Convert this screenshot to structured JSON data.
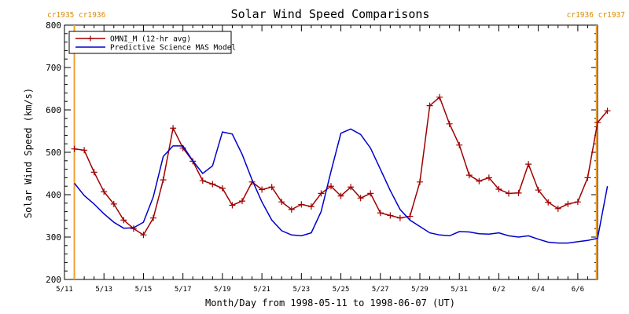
{
  "chart_data": {
    "type": "line",
    "title": "Solar Wind Speed Comparisons",
    "xlabel": "Month/Day from 1998-05-11 to 1998-06-07 (UT)",
    "ylabel": "Solar Wind Speed (km/s)",
    "ylim": [
      200,
      800
    ],
    "xlim": [
      0,
      27
    ],
    "y_ticks": [
      "200",
      "300",
      "400",
      "500",
      "600",
      "700",
      "800"
    ],
    "x_ticks": [
      {
        "x": 0,
        "label": "5/11"
      },
      {
        "x": 2,
        "label": "5/13"
      },
      {
        "x": 4,
        "label": "5/15"
      },
      {
        "x": 6,
        "label": "5/17"
      },
      {
        "x": 8,
        "label": "5/19"
      },
      {
        "x": 10,
        "label": "5/21"
      },
      {
        "x": 12,
        "label": "5/23"
      },
      {
        "x": 14,
        "label": "5/25"
      },
      {
        "x": 16,
        "label": "5/27"
      },
      {
        "x": 18,
        "label": "5/29"
      },
      {
        "x": 20,
        "label": "5/31"
      },
      {
        "x": 22,
        "label": "6/2"
      },
      {
        "x": 24,
        "label": "6/4"
      },
      {
        "x": 26,
        "label": "6/6"
      }
    ],
    "grid": false,
    "legend_position": "top-left",
    "carrington_markers": [
      {
        "x": 0.5,
        "label": "cr1935 cr1936",
        "side": "left"
      },
      {
        "x": 26.95,
        "label": "cr1936 cr1937",
        "side": "right"
      }
    ],
    "series": [
      {
        "name": "OMNI_M (12-hr avg)",
        "color": "#a00000",
        "marker": "plus",
        "x": [
          0.5,
          1.0,
          1.5,
          2.0,
          2.5,
          3.0,
          3.5,
          4.0,
          4.5,
          5.0,
          5.5,
          6.0,
          6.5,
          7.0,
          7.5,
          8.0,
          8.5,
          9.0,
          9.5,
          10.0,
          10.5,
          11.0,
          11.5,
          12.0,
          12.5,
          13.0,
          13.5,
          14.0,
          14.5,
          15.0,
          15.5,
          16.0,
          16.5,
          17.0,
          17.5,
          18.0,
          18.5,
          19.0,
          19.5,
          20.0,
          20.5,
          21.0,
          21.5,
          22.0,
          22.5,
          23.0,
          23.5,
          24.0,
          24.5,
          25.0,
          25.5,
          26.0,
          26.5,
          27.0,
          27.5
        ],
        "values": [
          508,
          505,
          453,
          407,
          378,
          340,
          320,
          305,
          345,
          435,
          557,
          510,
          479,
          433,
          425,
          415,
          375,
          385,
          430,
          412,
          418,
          383,
          365,
          377,
          372,
          403,
          420,
          397,
          418,
          392,
          403,
          357,
          351,
          345,
          349,
          430,
          610,
          630,
          567,
          517,
          446,
          432,
          440,
          413,
          403,
          404,
          472,
          411,
          382,
          367,
          378,
          383,
          440,
          570,
          598
        ]
      },
      {
        "name": "Predictive Science MAS Model",
        "color": "#0000cc",
        "marker": "none",
        "x": [
          0.5,
          1.0,
          1.5,
          2.0,
          2.5,
          3.0,
          3.5,
          4.0,
          4.5,
          5.0,
          5.5,
          6.0,
          6.5,
          7.0,
          7.5,
          8.0,
          8.5,
          9.0,
          9.5,
          10.0,
          10.5,
          11.0,
          11.5,
          12.0,
          12.5,
          13.0,
          13.5,
          14.0,
          14.5,
          15.0,
          15.5,
          16.0,
          16.5,
          17.0,
          17.5,
          18.0,
          18.5,
          19.0,
          19.5,
          20.0,
          20.5,
          21.0,
          21.5,
          22.0,
          22.5,
          23.0,
          23.5,
          24.0,
          24.5,
          25.0,
          25.5,
          26.0,
          26.5,
          27.0,
          27.5
        ],
        "values": [
          427,
          398,
          378,
          355,
          335,
          321,
          322,
          335,
          395,
          490,
          515,
          515,
          480,
          450,
          468,
          548,
          543,
          495,
          435,
          383,
          340,
          315,
          305,
          303,
          310,
          360,
          455,
          545,
          555,
          542,
          510,
          460,
          410,
          365,
          340,
          325,
          310,
          305,
          303,
          313,
          312,
          308,
          307,
          310,
          303,
          300,
          303,
          295,
          288,
          286,
          286,
          289,
          292,
          297,
          420
        ]
      }
    ]
  }
}
